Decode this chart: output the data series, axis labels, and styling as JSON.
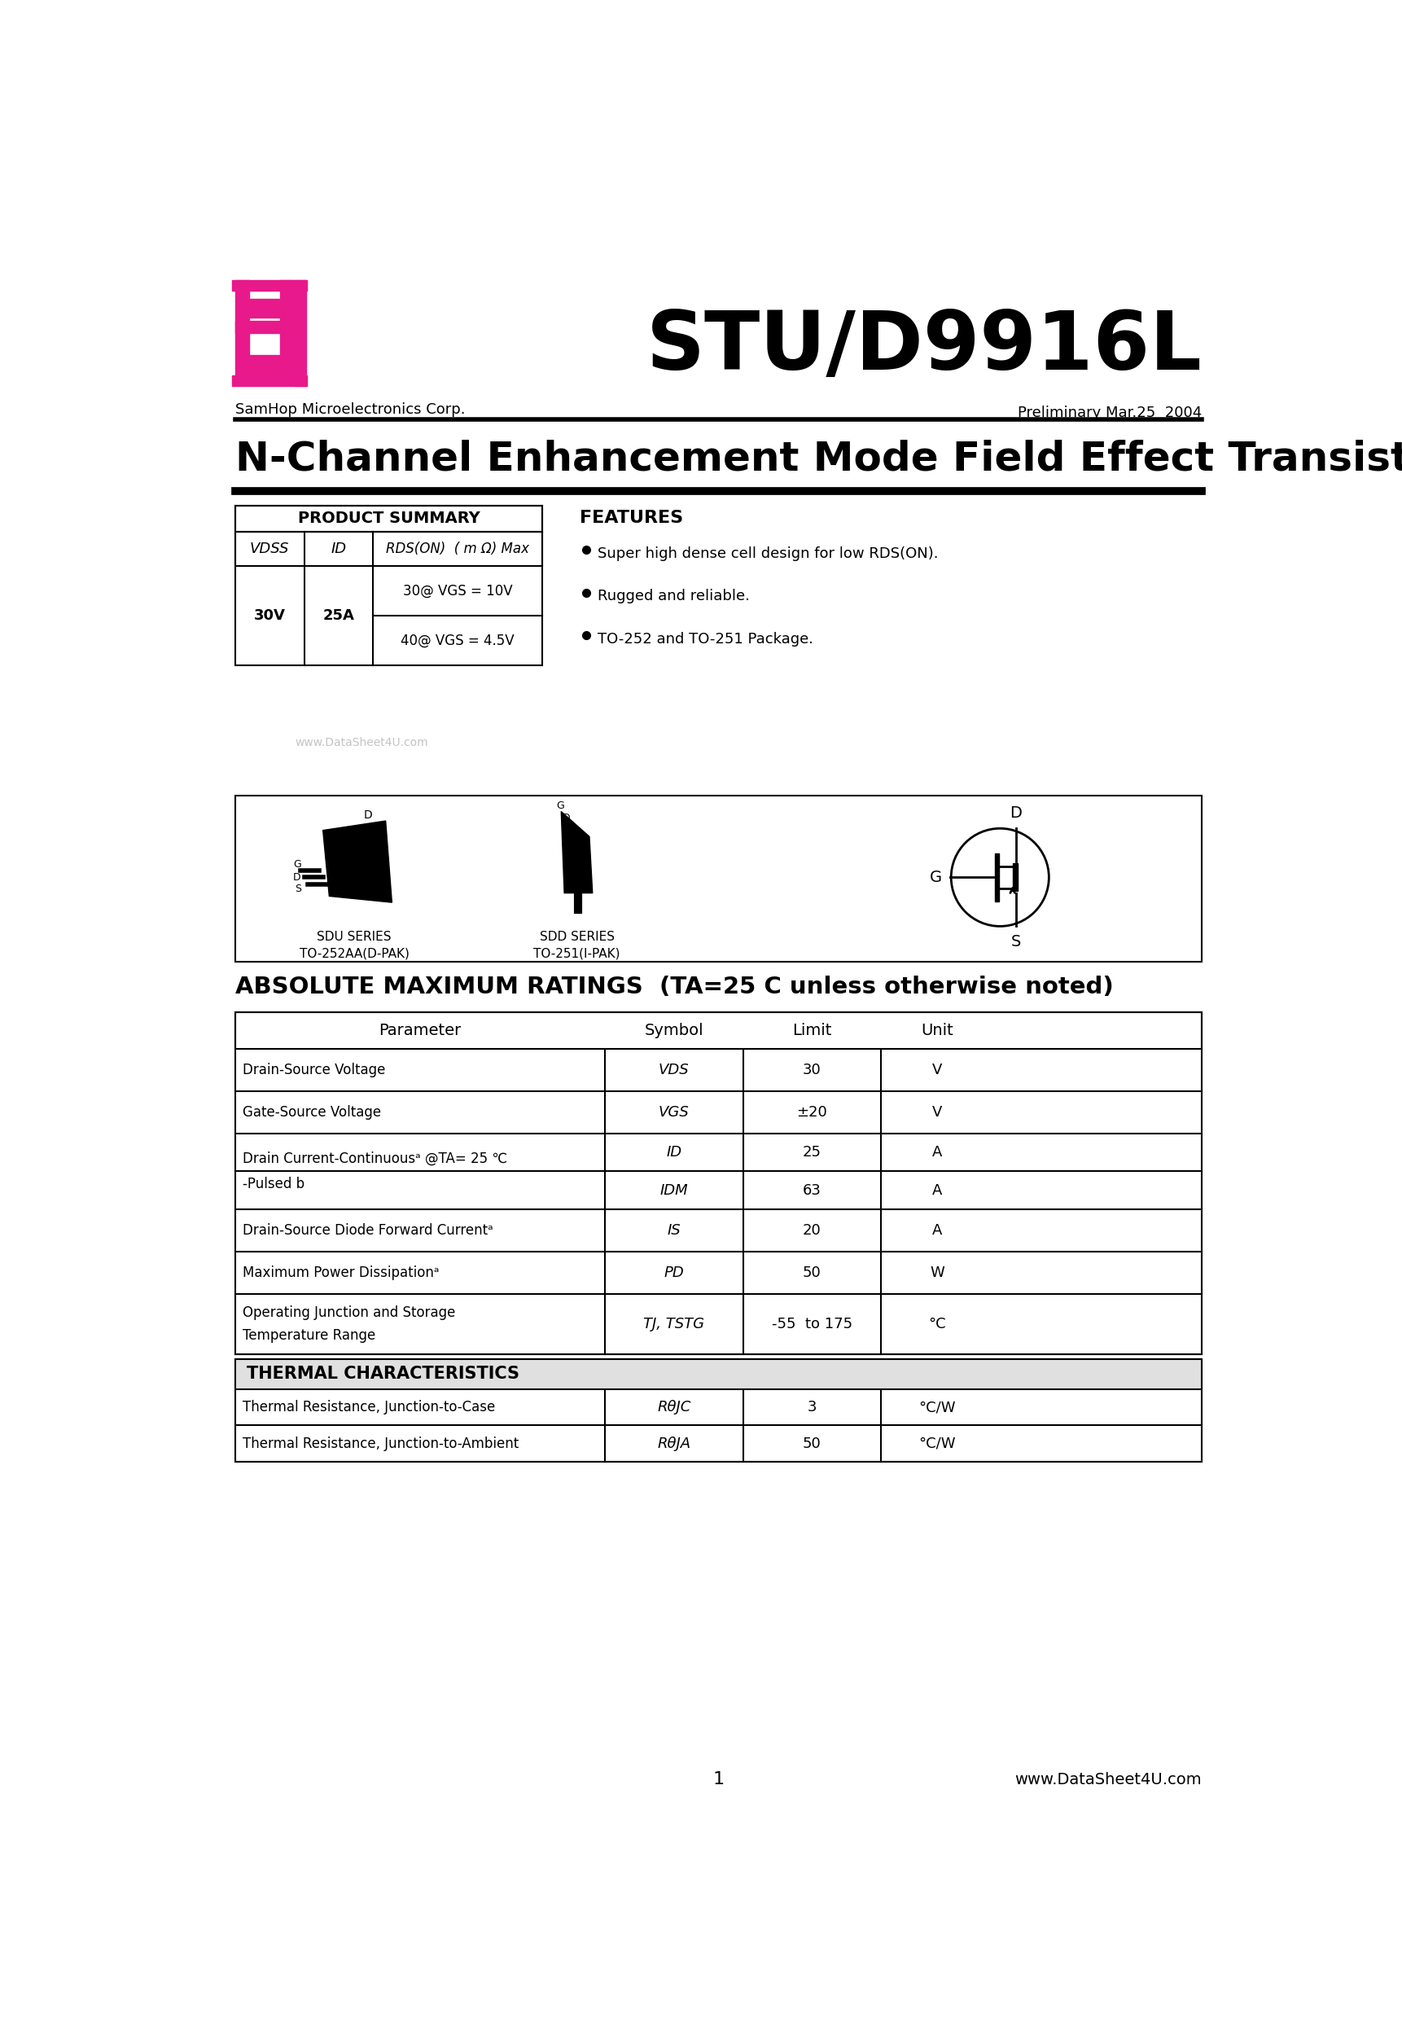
{
  "page_bg": "#ffffff",
  "title_main": "STU/D9916L",
  "title_sub": "N-Channel Enhancement Mode Field Effect Transistor",
  "company": "SamHop Microelectronics Corp.",
  "preliminary": "Preliminary Mar.25  2004",
  "logo_color": "#e8198b",
  "features_title": "FEATURES",
  "features": [
    "Super high dense cell design for low RDS(ON).",
    "Rugged and reliable.",
    "TO-252 and TO-251 Package."
  ],
  "product_summary_title": "PRODUCT SUMMARY",
  "abs_title": "ABSOLUTE MAXIMUM RATINGS  (TA=25 C unless otherwise noted)",
  "abs_headers": [
    "Parameter",
    "Symbol",
    "Limit",
    "Unit"
  ],
  "thermal_title": "THERMAL CHARACTERISTICS",
  "thermal_rows": [
    [
      "Thermal Resistance, Junction-to-Case",
      "RθJC",
      "3",
      "°C/W"
    ],
    [
      "Thermal Resistance, Junction-to-Ambient",
      "RθJA",
      "50",
      "°C/W"
    ]
  ],
  "footer_page": "1",
  "footer_url": "www.DataSheet4U.com",
  "watermark": "www.DataSheet4U.com"
}
